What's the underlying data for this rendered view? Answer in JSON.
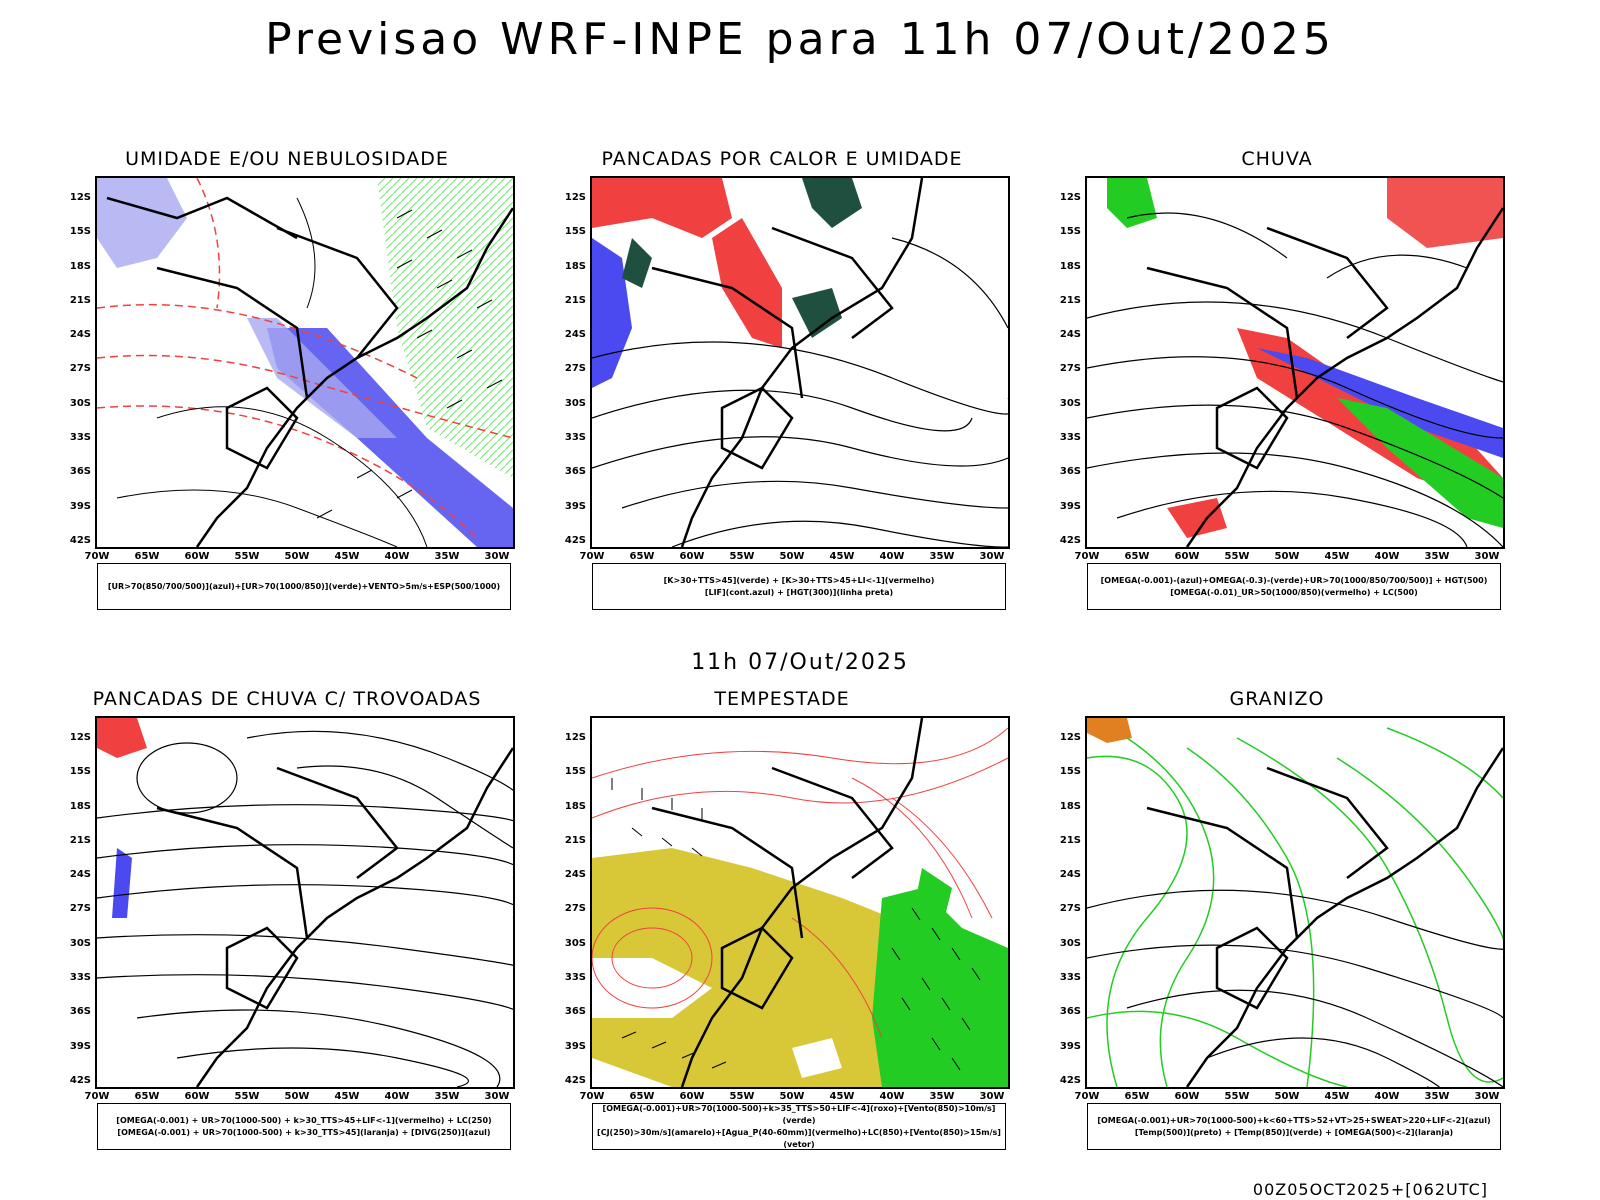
{
  "header": {
    "title": "Previsao WRF-INPE  para 11h 07/Out/2025"
  },
  "mid_label": "11h 07/Out/2025",
  "footer": "00Z05OCT2025+[062UTC]",
  "axes": {
    "lat": [
      "12S",
      "15S",
      "18S",
      "21S",
      "24S",
      "27S",
      "30S",
      "33S",
      "36S",
      "39S",
      "42S"
    ],
    "lon": [
      "70W",
      "65W",
      "60W",
      "55W",
      "50W",
      "45W",
      "40W",
      "35W",
      "30W"
    ]
  },
  "panels": [
    {
      "title": "UMIDADE E/OU NEBULOSIDADE",
      "legend": [
        "[UR>70(850/700/500)](azul)+[UR>70(1000/850)](verde)+VENTO>5m/s+ESP(500/1000)"
      ]
    },
    {
      "title": "PANCADAS POR CALOR E UMIDADE",
      "legend": [
        "[K>30+TTS>45](verde) + [K>30+TTS>45+LI<-1](vermelho)",
        "[LIF](cont.azul) + [HGT(300)](linha preta)"
      ]
    },
    {
      "title": "CHUVA",
      "legend": [
        "[OMEGA(-0.001)-(azul)+OMEGA(-0.3)-(verde)+UR>70(1000/850/700/500)] + HGT(500)",
        "[OMEGA(-0.01)_UR>50(1000/850)(vermelho) + LC(500)"
      ]
    },
    {
      "title": "PANCADAS DE CHUVA C/ TROVOADAS",
      "legend": [
        "[OMEGA(-0.001) + UR>70(1000-500) + k>30_TTS>45+LIF<-1](vermelho) + LC(250)",
        "[OMEGA(-0.001) + UR>70(1000-500) + k>30_TTS>45](laranja) + [DIVG(250)](azul)"
      ]
    },
    {
      "title": "TEMPESTADE",
      "legend": [
        "[OMEGA(-0.001)+UR>70(1000-500)+k>35_TTS>50+LIF<-4](roxo)+[Vento(850)>10m/s](verde)",
        "[CJ(250)>30m/s](amarelo)+[Agua_P(40-60mm)](vermelho)+LC(850)+[Vento(850)>15m/s](vetor)"
      ]
    },
    {
      "title": "GRANIZO",
      "legend": [
        "[OMEGA(-0.001)+UR>70(1000-500)+k<60+TTS>52+VT>25+SWEAT>220+LIF<-2](azul)",
        "[Temp(500)](preto) + [Temp(850)](verde) + [OMEGA(500)<-2](laranja)"
      ]
    }
  ],
  "colors": {
    "blue": "#4a4af0",
    "lightblue": "#a8a8f0",
    "green": "#22cc22",
    "red": "#f04040",
    "darkgreen": "#1f4f3f",
    "yellow": "#d8c838",
    "purple": "#a040d0",
    "orange": "#e08020"
  }
}
